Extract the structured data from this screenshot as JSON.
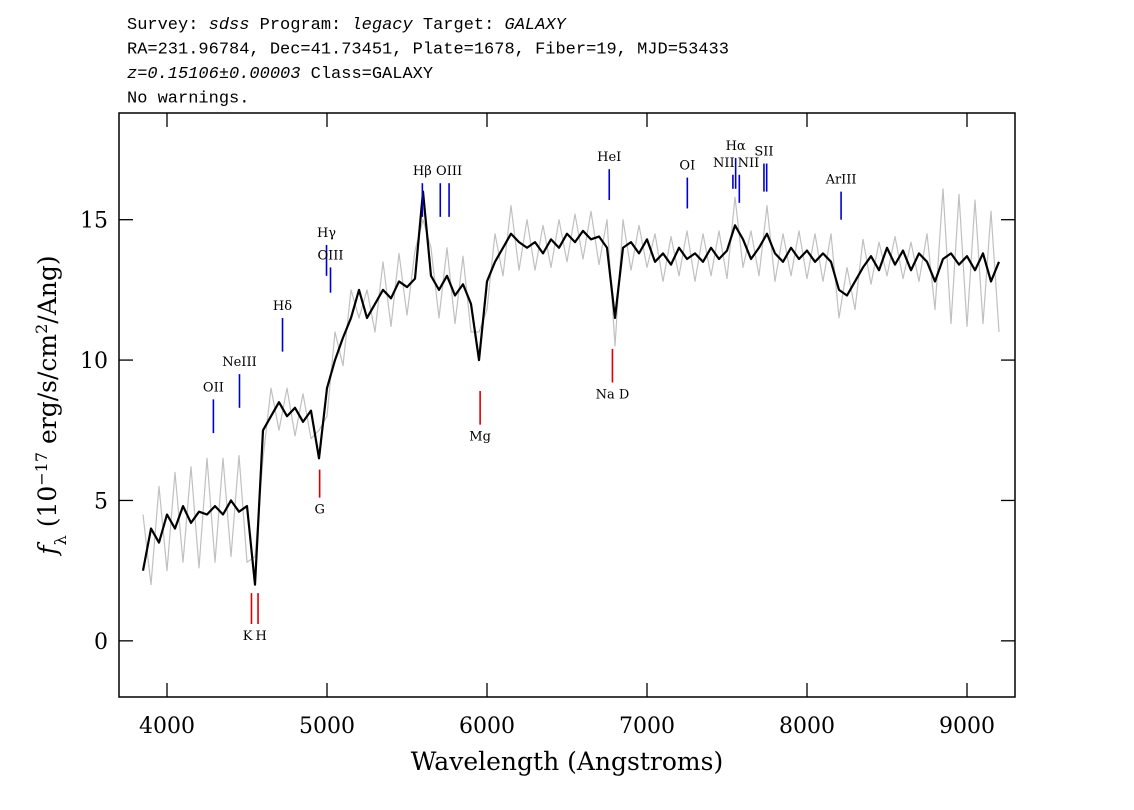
{
  "chart_data": {
    "type": "line",
    "header_lines": [
      [
        {
          "text": "Survey: "
        },
        {
          "text": "sdss",
          "italic": true
        },
        {
          "text": " Program: "
        },
        {
          "text": "legacy",
          "italic": true
        },
        {
          "text": " Target: "
        },
        {
          "text": "GALAXY",
          "italic": true
        }
      ],
      [
        {
          "text": "RA=231.96784, Dec=41.73451, Plate=1678, Fiber=19, MJD=53433"
        }
      ],
      [
        {
          "text": "z=0.15106±0.00003",
          "italic": true
        },
        {
          "text": " Class=GALAXY"
        }
      ],
      [
        {
          "text": "No warnings."
        }
      ]
    ],
    "xlabel": "Wavelength (Angstroms)",
    "ylabel": [
      {
        "text": "f",
        "italic": true
      },
      {
        "text": "λ",
        "shift": "sub"
      },
      {
        "text": " (10"
      },
      {
        "text": "−17",
        "shift": "super"
      },
      {
        "text": " erg/s/cm"
      },
      {
        "text": "2",
        "shift": "super"
      },
      {
        "text": "/Ang)"
      }
    ],
    "xlim": [
      3700,
      9300
    ],
    "ylim": [
      -2,
      18.8
    ],
    "xticks": [
      4000,
      5000,
      6000,
      7000,
      8000,
      9000
    ],
    "yticks": [
      0,
      5,
      10,
      15
    ],
    "x": [
      3850,
      3900,
      3950,
      4000,
      4050,
      4100,
      4150,
      4200,
      4250,
      4300,
      4350,
      4400,
      4450,
      4500,
      4550,
      4600,
      4650,
      4700,
      4750,
      4800,
      4850,
      4900,
      4950,
      5000,
      5050,
      5100,
      5150,
      5200,
      5250,
      5300,
      5350,
      5400,
      5450,
      5500,
      5550,
      5600,
      5650,
      5700,
      5750,
      5800,
      5850,
      5900,
      5950,
      6000,
      6050,
      6100,
      6150,
      6200,
      6250,
      6300,
      6350,
      6400,
      6450,
      6500,
      6550,
      6600,
      6650,
      6700,
      6750,
      6800,
      6850,
      6900,
      6950,
      7000,
      7050,
      7100,
      7150,
      7200,
      7250,
      7300,
      7350,
      7400,
      7450,
      7500,
      7550,
      7600,
      7650,
      7700,
      7750,
      7800,
      7850,
      7900,
      7950,
      8000,
      8050,
      8100,
      8150,
      8200,
      8250,
      8300,
      8350,
      8400,
      8450,
      8500,
      8550,
      8600,
      8650,
      8700,
      8750,
      8800,
      8850,
      8900,
      8950,
      9000,
      9050,
      9100,
      9150,
      9200
    ],
    "series": [
      {
        "color": "#c0c0c0",
        "values": [
          4.5,
          2.0,
          5.5,
          2.5,
          6.0,
          2.8,
          6.2,
          2.6,
          6.5,
          2.8,
          6.5,
          3.0,
          6.6,
          2.8,
          3.0,
          6.5,
          9.0,
          7.5,
          9.0,
          7.3,
          8.8,
          7.2,
          7.5,
          8.0,
          11.0,
          9.8,
          12.5,
          11.5,
          12.5,
          11.0,
          13.5,
          11.2,
          13.8,
          11.6,
          13.9,
          15.0,
          14.0,
          11.5,
          14.0,
          11.3,
          13.7,
          11.0,
          11.0,
          11.8,
          14.5,
          13.0,
          15.5,
          13.2,
          15.0,
          13.2,
          14.8,
          13.3,
          15.0,
          13.5,
          15.2,
          13.6,
          15.3,
          13.4,
          15.0,
          10.5,
          15.0,
          13.2,
          14.8,
          13.3,
          14.5,
          12.8,
          14.4,
          13.0,
          14.6,
          12.8,
          14.5,
          13.0,
          14.6,
          12.9,
          15.8,
          13.3,
          14.6,
          13.0,
          15.5,
          12.8,
          14.5,
          13.0,
          14.6,
          12.9,
          14.5,
          12.8,
          14.5,
          11.5,
          13.3,
          11.8,
          14.3,
          12.7,
          14.2,
          13.0,
          14.4,
          12.9,
          14.2,
          12.8,
          14.5,
          11.8,
          16.1,
          11.3,
          15.9,
          11.2,
          15.7,
          11.3,
          15.3,
          11.0
        ]
      },
      {
        "color": "#000000",
        "values": [
          2.5,
          4.0,
          3.5,
          4.5,
          4.0,
          4.8,
          4.2,
          4.6,
          4.5,
          4.8,
          4.5,
          5.0,
          4.6,
          4.8,
          2.0,
          7.5,
          8.0,
          8.5,
          8.0,
          8.3,
          7.8,
          8.2,
          6.5,
          9.0,
          10.0,
          10.8,
          11.5,
          12.5,
          11.5,
          12.0,
          12.5,
          12.2,
          12.8,
          12.6,
          12.9,
          16.0,
          13.0,
          12.5,
          13.0,
          12.3,
          12.7,
          12.0,
          10.0,
          12.8,
          13.5,
          14.0,
          14.5,
          14.2,
          14.0,
          14.2,
          13.8,
          14.3,
          14.0,
          14.5,
          14.2,
          14.6,
          14.3,
          14.4,
          14.0,
          11.5,
          14.0,
          14.2,
          13.8,
          14.3,
          13.5,
          13.8,
          13.4,
          14.0,
          13.6,
          13.8,
          13.5,
          14.0,
          13.6,
          13.9,
          14.8,
          14.3,
          13.6,
          14.0,
          14.5,
          13.8,
          13.5,
          14.0,
          13.6,
          13.9,
          13.5,
          13.8,
          13.5,
          12.5,
          12.3,
          12.8,
          13.3,
          13.7,
          13.2,
          14.0,
          13.4,
          13.9,
          13.2,
          13.8,
          13.5,
          12.8,
          13.6,
          13.8,
          13.4,
          13.7,
          13.2,
          13.8,
          12.8,
          13.5
        ]
      }
    ],
    "lines": [
      {
        "label": "OII",
        "x": 4290,
        "ymin": 7.4,
        "ymax": 8.6,
        "color": "#0000cc",
        "kind": "emission"
      },
      {
        "label": "NeIII",
        "x": 4453,
        "ymin": 8.3,
        "ymax": 9.5,
        "color": "#0000cc",
        "kind": "emission"
      },
      {
        "label": "Hδ",
        "x": 4722,
        "ymin": 10.3,
        "ymax": 11.5,
        "color": "#0000cc",
        "kind": "emission"
      },
      {
        "label": "Hγ",
        "x": 4997,
        "ymin": 13.0,
        "ymax": 14.1,
        "color": "#0000cc",
        "kind": "emission"
      },
      {
        "label": "OIII",
        "x": 5022,
        "ymin": 12.4,
        "ymax": 13.3,
        "color": "#0000cc",
        "kind": "emission"
      },
      {
        "label": "Hβ",
        "x": 5596,
        "ymin": 15.1,
        "ymax": 16.3,
        "color": "#0000cc",
        "kind": "emission"
      },
      {
        "x": 5708,
        "ymin": 15.1,
        "ymax": 16.3,
        "color": "#0000cc",
        "kind": "emission"
      },
      {
        "label": "OIII",
        "x": 5763,
        "ymin": 15.1,
        "ymax": 16.3,
        "color": "#0000cc",
        "kind": "emission"
      },
      {
        "label": "HeI",
        "x": 6764,
        "ymin": 15.7,
        "ymax": 16.8,
        "color": "#0000cc",
        "kind": "emission"
      },
      {
        "label": "OI",
        "x": 7252,
        "ymin": 15.4,
        "ymax": 16.5,
        "color": "#0000cc",
        "kind": "emission"
      },
      {
        "label": "NII",
        "x": 7537,
        "ymin": 16.1,
        "ymax": 16.6,
        "color": "#0000cc",
        "kind": "emission"
      },
      {
        "label": "Hα",
        "x": 7554,
        "ymin": 16.1,
        "ymax": 17.2,
        "color": "#0000cc",
        "kind": "emission"
      },
      {
        "label": "NII",
        "x": 7577,
        "ymin": 15.6,
        "ymax": 16.6,
        "color": "#0000cc",
        "kind": "emission"
      },
      {
        "label": "SII",
        "x": 7731,
        "ymin": 16.0,
        "ymax": 17.0,
        "color": "#0000cc",
        "kind": "emission"
      },
      {
        "x": 7748,
        "ymin": 16.0,
        "ymax": 17.0,
        "color": "#0000cc",
        "kind": "emission"
      },
      {
        "label": "ArIII",
        "x": 8213,
        "ymin": 15.0,
        "ymax": 16.0,
        "color": "#0000cc",
        "kind": "emission"
      },
      {
        "label": "K",
        "x": 4528,
        "ymin": 0.6,
        "ymax": 1.7,
        "color": "#dd0000",
        "kind": "absorption"
      },
      {
        "label": "H",
        "x": 4569,
        "ymin": 0.6,
        "ymax": 1.7,
        "color": "#dd0000",
        "kind": "absorption"
      },
      {
        "label": "G",
        "x": 4954,
        "ymin": 5.1,
        "ymax": 6.1,
        "color": "#dd0000",
        "kind": "absorption"
      },
      {
        "label": "Mg",
        "x": 5957,
        "ymin": 7.7,
        "ymax": 8.9,
        "color": "#dd0000",
        "kind": "absorption"
      },
      {
        "label": "Na D",
        "x": 6784,
        "ymin": 9.2,
        "ymax": 10.4,
        "color": "#dd0000",
        "kind": "absorption"
      }
    ]
  }
}
